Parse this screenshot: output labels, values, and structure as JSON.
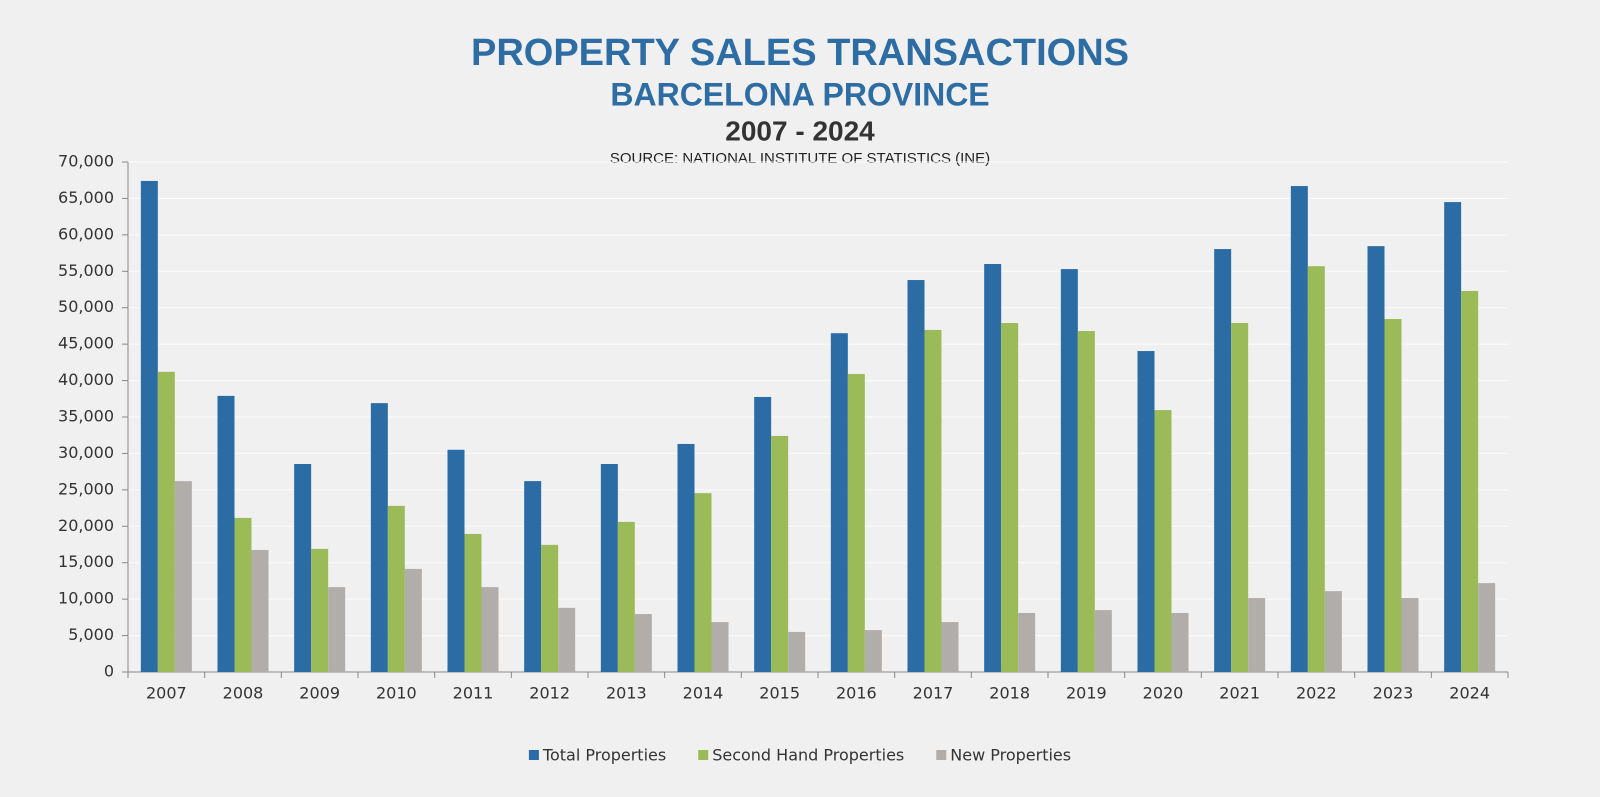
{
  "chart_data": {
    "type": "bar",
    "title": "PROPERTY SALES TRANSACTIONS",
    "subtitle": "BARCELONA PROVINCE",
    "period": "2007 - 2024",
    "source": "SOURCE: NATIONAL INSTITUTE OF STATISTICS (INE)",
    "categories": [
      "2007",
      "2008",
      "2009",
      "2010",
      "2011",
      "2012",
      "2013",
      "2014",
      "2015",
      "2016",
      "2017",
      "2018",
      "2019",
      "2020",
      "2021",
      "2022",
      "2023",
      "2024"
    ],
    "series": [
      {
        "name": "Total Properties",
        "color": "#2a6ca3",
        "values": [
          67400,
          37900,
          28550,
          36900,
          30500,
          26200,
          28550,
          31300,
          37750,
          46500,
          53800,
          56000,
          55300,
          44050,
          58050,
          66700,
          58450,
          64500
        ]
      },
      {
        "name": "Second Hand Properties",
        "color": "#9bbb59",
        "values": [
          41200,
          21150,
          16900,
          22800,
          18950,
          17450,
          20600,
          24550,
          32400,
          40900,
          46950,
          47900,
          46800,
          35950,
          47900,
          55700,
          48450,
          52300
        ]
      },
      {
        "name": "New Properties",
        "color": "#b1adab",
        "values": [
          26200,
          16750,
          11650,
          14150,
          11650,
          8800,
          7950,
          6850,
          5500,
          5750,
          6850,
          8100,
          8500,
          8100,
          10150,
          11100,
          10150,
          12200
        ]
      }
    ],
    "ylim": [
      0,
      70000
    ],
    "yticks": [
      0,
      {
        "value": 5000,
        "label": "5,000"
      },
      {
        "value": 10000,
        "label": "10,000"
      },
      {
        "value": 15000,
        "label": "15,000"
      },
      {
        "value": 20000,
        "label": "20,000"
      },
      {
        "value": 25000,
        "label": "25,000"
      },
      {
        "value": 30000,
        "label": "30,000"
      },
      {
        "value": 35000,
        "label": "35,000"
      },
      {
        "value": 40000,
        "label": "40,000"
      },
      {
        "value": 45000,
        "label": "45,000"
      },
      {
        "value": 50000,
        "label": "50,000"
      },
      {
        "value": 55000,
        "label": "55,000"
      },
      {
        "value": 60000,
        "label": "60,000"
      },
      {
        "value": 65000,
        "label": "65,000"
      },
      {
        "value": 70000,
        "label": "70,000"
      }
    ],
    "grid": true,
    "legend": "bottom"
  }
}
